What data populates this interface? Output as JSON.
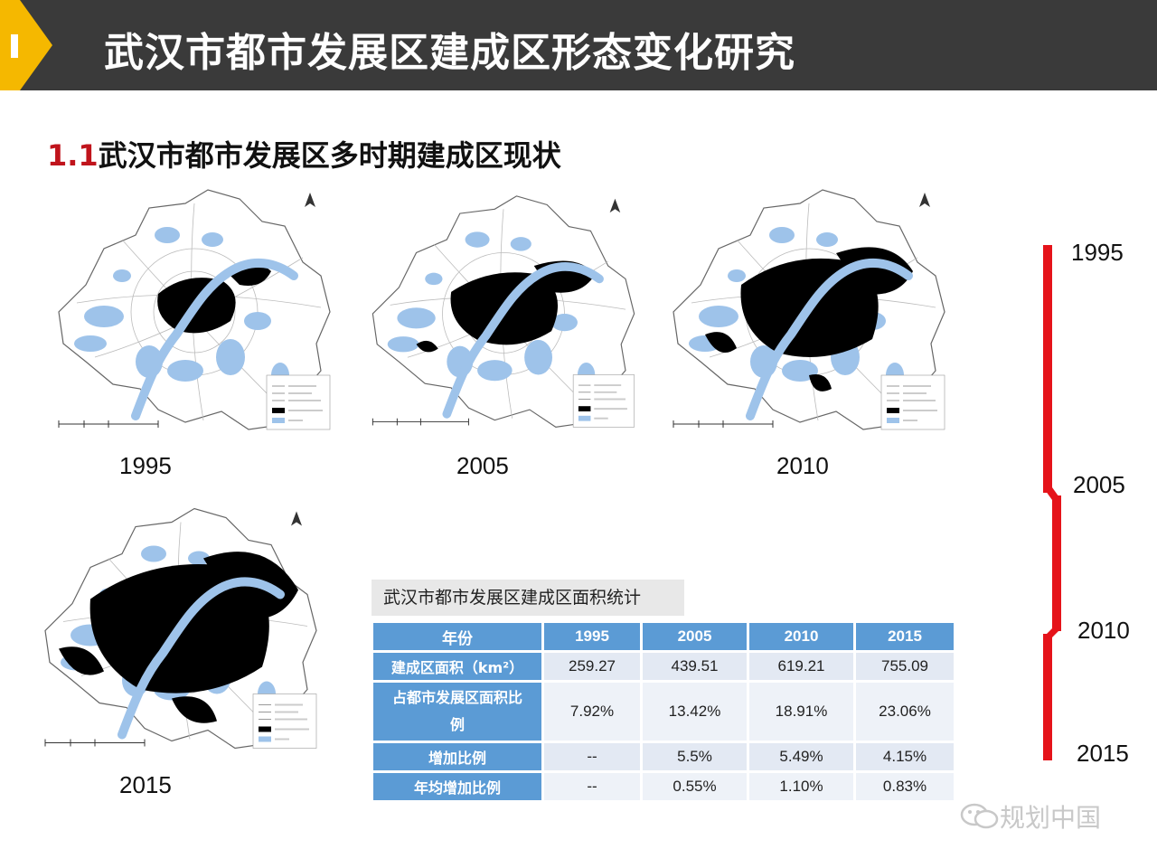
{
  "header": {
    "title": "武汉市都市发展区建成区形态变化研究"
  },
  "section": {
    "number": "1.1",
    "title": "武汉市都市发展区多时期建成区现状"
  },
  "maps": [
    {
      "year": "1995"
    },
    {
      "year": "2005"
    },
    {
      "year": "2010"
    },
    {
      "year": "2015"
    }
  ],
  "timeline": {
    "years": [
      "1995",
      "2005",
      "2010",
      "2015"
    ],
    "color": "#e5131a"
  },
  "table": {
    "caption": "武汉市都市发展区建成区面积统计",
    "header": [
      "年份",
      "1995",
      "2005",
      "2010",
      "2015"
    ],
    "rows": [
      {
        "label": "建成区面积（km²）",
        "values": [
          "259.27",
          "439.51",
          "619.21",
          "755.09"
        ]
      },
      {
        "label": "占都市发展区面积比例",
        "values": [
          "7.92%",
          "13.42%",
          "18.91%",
          "23.06%"
        ]
      },
      {
        "label": "增加比例",
        "values": [
          "--",
          "5.5%",
          "5.49%",
          "4.15%"
        ]
      },
      {
        "label": "年均增加比例",
        "values": [
          "--",
          "0.55%",
          "1.10%",
          "0.83%"
        ]
      }
    ]
  },
  "watermark": "规划中国",
  "colors": {
    "header_bg": "#3a3a3a",
    "accent_yellow": "#f5b800",
    "accent_red": "#c0141c",
    "table_blue": "#5b9bd5",
    "water": "#9ec3ea"
  }
}
